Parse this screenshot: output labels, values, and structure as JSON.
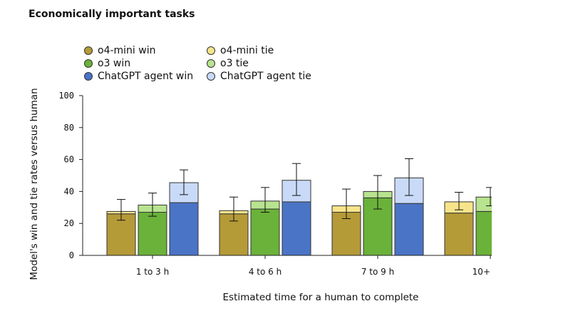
{
  "chart_data": {
    "type": "bar",
    "title": "Economically important tasks",
    "xlabel": "Estimated time for a human to complete",
    "ylabel": "Model's win and tie rates versus human",
    "ylim": [
      0,
      100
    ],
    "yticks": [
      0,
      20,
      40,
      60,
      80,
      100
    ],
    "categories": [
      "1 to 3 h",
      "4 to 6 h",
      "7 to 9 h",
      "10+"
    ],
    "series": [
      {
        "name": "o4-mini",
        "win_label": "o4-mini win",
        "tie_label": "o4-mini tie",
        "win_color": "#b59a38",
        "tie_color": "#f7e48a",
        "win": [
          26,
          26,
          27,
          26.5
        ],
        "tie": [
          1.5,
          2,
          4,
          7
        ],
        "err_low": [
          22,
          21.5,
          23,
          28.5
        ],
        "err_high": [
          35,
          36.5,
          41.5,
          39.5
        ]
      },
      {
        "name": "o3",
        "win_label": "o3 win",
        "tie_label": "o3 tie",
        "win_color": "#6ab23a",
        "tie_color": "#b8e38f",
        "win": [
          27,
          29,
          36,
          27.5
        ],
        "tie": [
          4.5,
          5,
          4,
          9
        ],
        "err_low": [
          24.5,
          27,
          29,
          31
        ],
        "err_high": [
          39,
          42.5,
          50,
          42.5
        ]
      },
      {
        "name": "ChatGPT agent",
        "win_label": "ChatGPT agent win",
        "tie_label": "ChatGPT agent tie",
        "win_color": "#4a74c6",
        "tie_color": "#c9daf8",
        "win": [
          33,
          33.5,
          32.5,
          null
        ],
        "tie": [
          12.5,
          13.5,
          16,
          null
        ],
        "err_low": [
          38,
          37.5,
          37.5,
          null
        ],
        "err_high": [
          53.5,
          57.5,
          60.5,
          null
        ]
      }
    ],
    "legend": [
      "o4-mini win",
      "o4-mini tie",
      "o3 win",
      "o3 tie",
      "ChatGPT agent win",
      "ChatGPT agent tie"
    ]
  }
}
